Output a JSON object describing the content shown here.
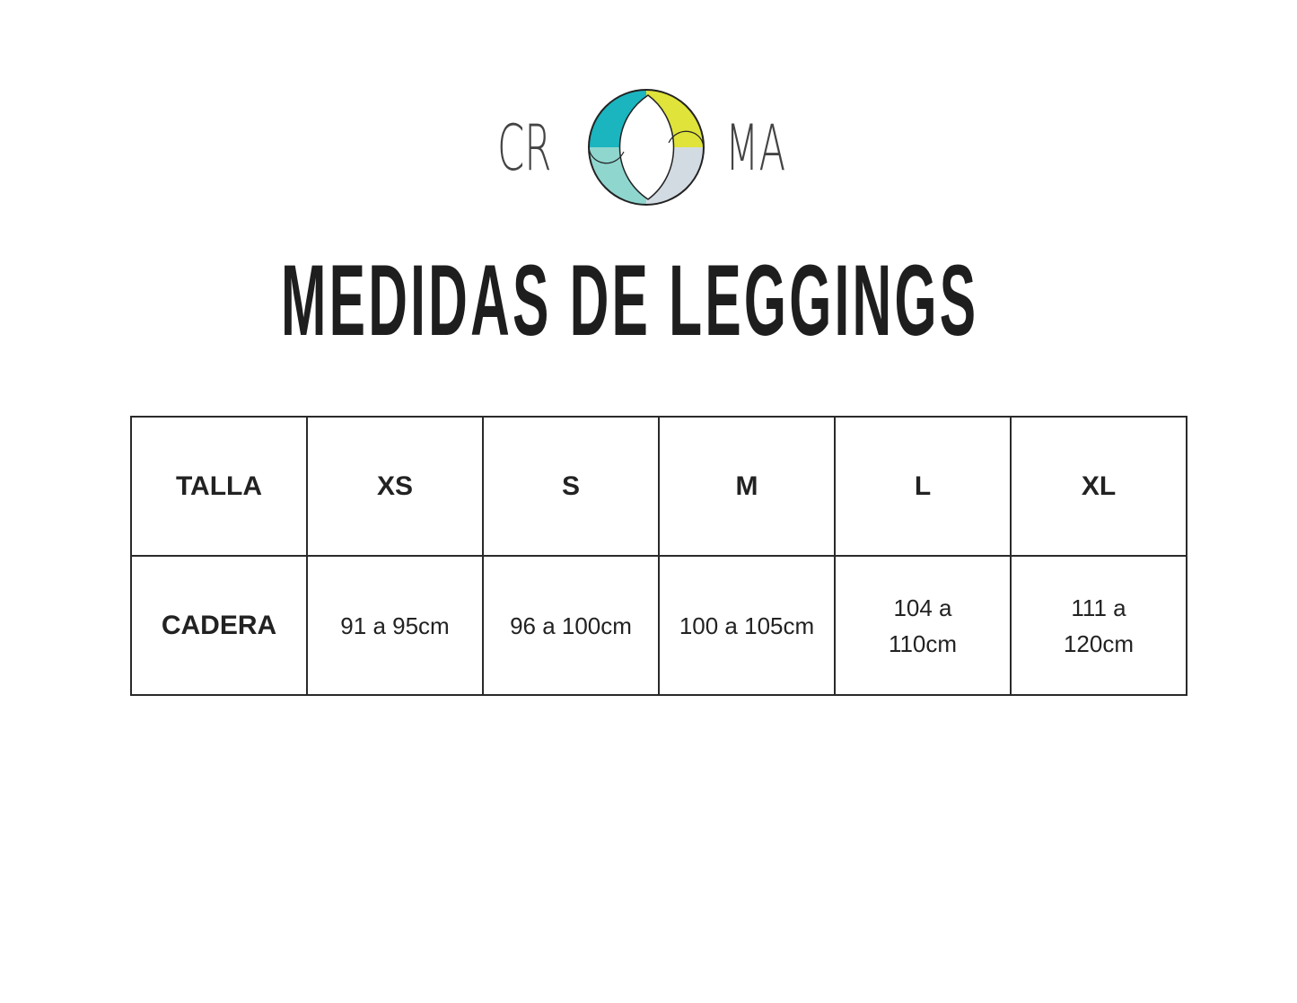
{
  "logo": {
    "brand": "CROMA",
    "letters_left": "CR",
    "letters_right": "MA",
    "colors": {
      "teal": "#1ab5bf",
      "yellow": "#dfe33a",
      "grey": "#d3dbe2",
      "mint": "#8fd6cf"
    }
  },
  "title": "MEDIDAS DE LEGGINGS",
  "table": {
    "header": [
      "TALLA",
      "XS",
      "S",
      "M",
      "L",
      "XL"
    ],
    "row": [
      "CADERA",
      "91 a 95cm",
      "96 a 100cm",
      "100 a 105cm",
      "104 a 110cm",
      "111 a 120cm"
    ]
  }
}
